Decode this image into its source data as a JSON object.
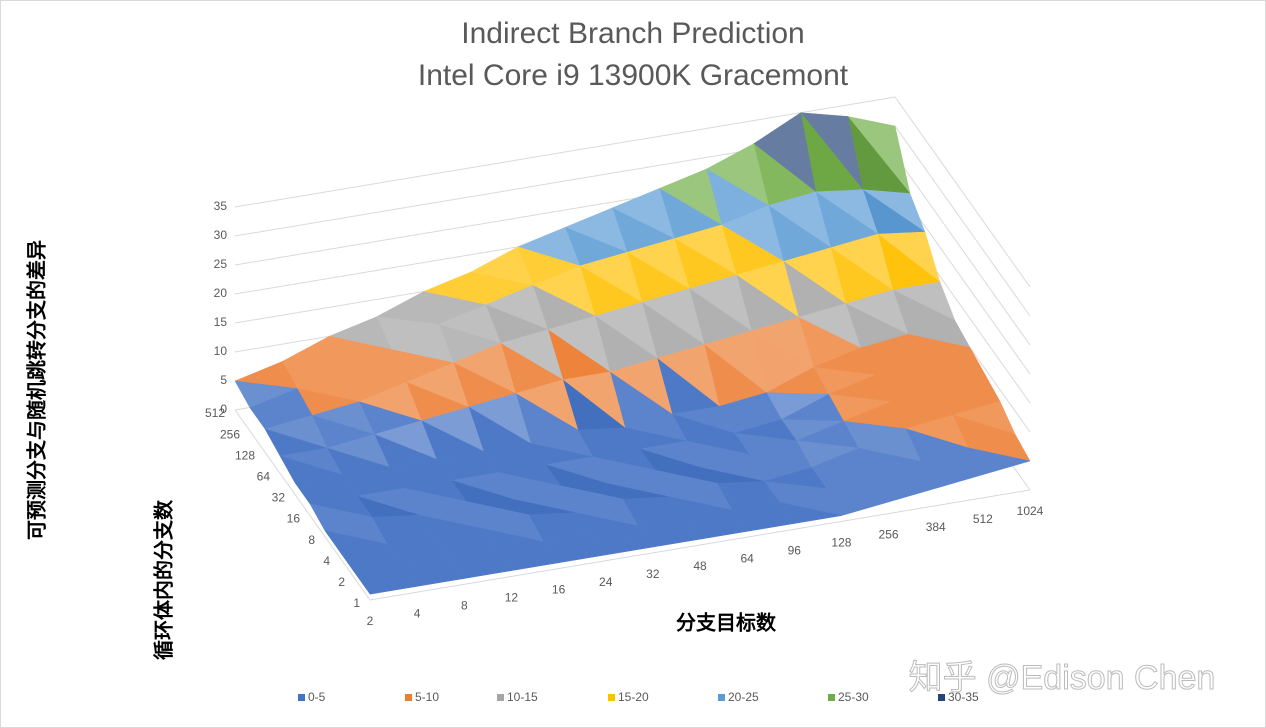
{
  "chart_data": {
    "type": "surface",
    "title": [
      "Indirect Branch Prediction",
      "Intel Core i9 13900K Gracemont"
    ],
    "x_label": "分支目标数",
    "depth_label": "循环体内的分支数",
    "z_label": "可预测分支与随机跳转分支的差异",
    "categories": [
      "2",
      "4",
      "8",
      "12",
      "16",
      "24",
      "32",
      "48",
      "64",
      "96",
      "128",
      "256",
      "384",
      "512",
      "1024"
    ],
    "depth_categories": [
      "1",
      "2",
      "4",
      "8",
      "16",
      "32",
      "64",
      "128",
      "256",
      "512"
    ],
    "values": [
      [
        1,
        1,
        1,
        1,
        1,
        1,
        1,
        1,
        1,
        1,
        1,
        2,
        3,
        4,
        5
      ],
      [
        1,
        1,
        1,
        1,
        1,
        1,
        1,
        1,
        1,
        1,
        2,
        3,
        4,
        5,
        6
      ],
      [
        1,
        1,
        1,
        1,
        2,
        1,
        2,
        1,
        2,
        1,
        2,
        4,
        6,
        7,
        8
      ],
      [
        1,
        2,
        1,
        2,
        1,
        2,
        1,
        2,
        1,
        2,
        3,
        5,
        7,
        8,
        9
      ],
      [
        2,
        2,
        2,
        2,
        2,
        2,
        2,
        2,
        2,
        2,
        3,
        6,
        8,
        9,
        10
      ],
      [
        2,
        2,
        2,
        2,
        2,
        2,
        3,
        2,
        3,
        3,
        4,
        7,
        9,
        10,
        11
      ],
      [
        3,
        3,
        4,
        5,
        6,
        7,
        8,
        8,
        9,
        10,
        11,
        12,
        13,
        14,
        14
      ],
      [
        4,
        5,
        6,
        8,
        10,
        12,
        13,
        14,
        15,
        16,
        17,
        18,
        19,
        20,
        19
      ],
      [
        4,
        6,
        8,
        10,
        13,
        15,
        17,
        19,
        20,
        21,
        22,
        24,
        25,
        24,
        22
      ],
      [
        5,
        7,
        10,
        12,
        15,
        17,
        20,
        22,
        24,
        26,
        28,
        31,
        35,
        33,
        30
      ]
    ],
    "zlim": [
      0,
      35
    ],
    "zticks": [
      0,
      5,
      10,
      15,
      20,
      25,
      30,
      35
    ],
    "grid": true,
    "legend_position": "bottom",
    "legend": [
      {
        "name": "0-5",
        "color": "#4472c4"
      },
      {
        "name": "5-10",
        "color": "#ed7d31"
      },
      {
        "name": "10-15",
        "color": "#a5a5a5"
      },
      {
        "name": "15-20",
        "color": "#ffc000"
      },
      {
        "name": "20-25",
        "color": "#5b9bd5"
      },
      {
        "name": "25-30",
        "color": "#70ad47"
      },
      {
        "name": "30-35",
        "color": "#264478"
      }
    ],
    "watermark": "知乎 @Edison Chen"
  }
}
